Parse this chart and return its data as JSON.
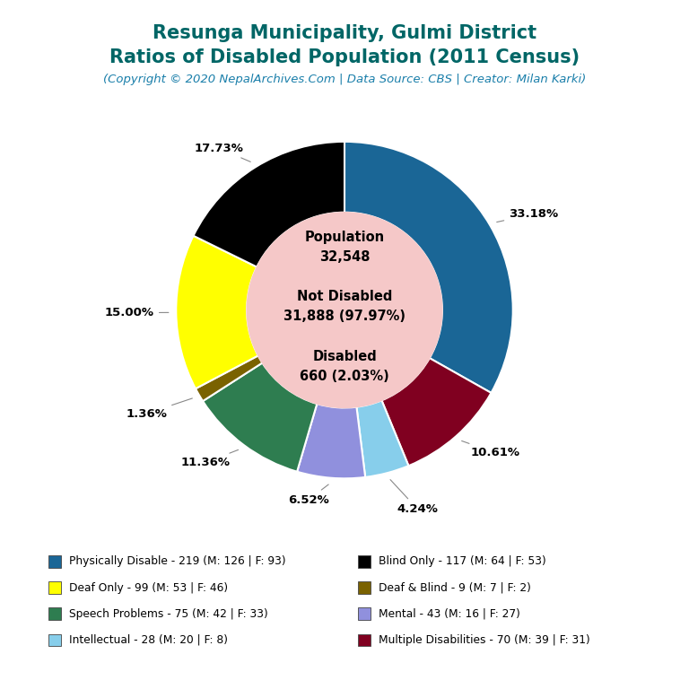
{
  "title_line1": "Resunga Municipality, Gulmi District",
  "title_line2": "Ratios of Disabled Population (2011 Census)",
  "subtitle": "(Copyright © 2020 NepalArchives.Com | Data Source: CBS | Creator: Milan Karki)",
  "title_color": "#006666",
  "subtitle_color": "#1a7faa",
  "total_population": "32,548",
  "not_disabled": "31,888",
  "not_disabled_pct": "97.97",
  "disabled": "660",
  "disabled_pct": "2.03",
  "center_bg_color": "#f5c8c8",
  "slices": [
    {
      "value": 219,
      "pct": "33.18%",
      "color": "#1a6696",
      "label_side": "right"
    },
    {
      "value": 70,
      "pct": "10.61%",
      "color": "#800020",
      "label_side": "right"
    },
    {
      "value": 28,
      "pct": "4.24%",
      "color": "#87ceeb",
      "label_side": "right"
    },
    {
      "value": 43,
      "pct": "6.52%",
      "color": "#9090dd",
      "label_side": "right"
    },
    {
      "value": 75,
      "pct": "11.36%",
      "color": "#2e7d50",
      "label_side": "bottom"
    },
    {
      "value": 9,
      "pct": "1.36%",
      "color": "#7a6200",
      "label_side": "bottom"
    },
    {
      "value": 99,
      "pct": "15.00%",
      "color": "#ffff00",
      "label_side": "left"
    },
    {
      "value": 117,
      "pct": "17.73%",
      "color": "#000000",
      "label_side": "left"
    }
  ],
  "legend_col1": [
    {
      "label": "Physically Disable - 219 (M: 126 | F: 93)",
      "color": "#1a6696"
    },
    {
      "label": "Deaf Only - 99 (M: 53 | F: 46)",
      "color": "#ffff00"
    },
    {
      "label": "Speech Problems - 75 (M: 42 | F: 33)",
      "color": "#2e7d50"
    },
    {
      "label": "Intellectual - 28 (M: 20 | F: 8)",
      "color": "#87ceeb"
    }
  ],
  "legend_col2": [
    {
      "label": "Blind Only - 117 (M: 64 | F: 53)",
      "color": "#000000"
    },
    {
      "label": "Deaf & Blind - 9 (M: 7 | F: 2)",
      "color": "#7a6200"
    },
    {
      "label": "Mental - 43 (M: 16 | F: 27)",
      "color": "#9090dd"
    },
    {
      "label": "Multiple Disabilities - 70 (M: 39 | F: 31)",
      "color": "#800020"
    }
  ]
}
